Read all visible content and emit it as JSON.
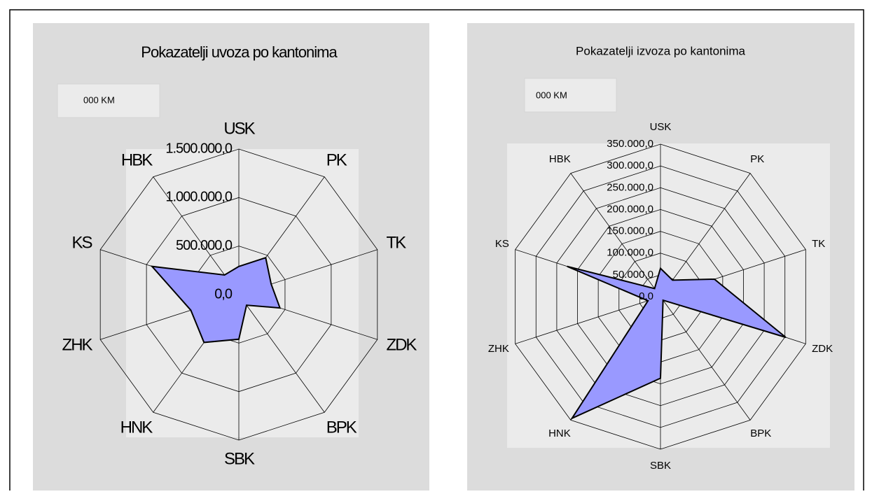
{
  "chart_data": [
    {
      "type": "radar",
      "title": "Pokazatelji uvoza po kantonima",
      "unit": "000 KM",
      "categories": [
        "USK",
        "PK",
        "TK",
        "ZDK",
        "BPK",
        "SBK",
        "HNK",
        "ZHK",
        "KS",
        "HBK"
      ],
      "values": [
        290000,
        470000,
        350000,
        445000,
        135000,
        460000,
        610000,
        520000,
        940000,
        250000
      ],
      "color": "#9999ff",
      "rlim": [
        0,
        1500000
      ],
      "rticks": [
        {
          "value": 0,
          "label": "0,0"
        },
        {
          "value": 500000,
          "label": "500.000,0"
        },
        {
          "value": 1000000,
          "label": "1.000.000,0"
        },
        {
          "value": 1500000,
          "label": "1.500.000,0"
        }
      ]
    },
    {
      "type": "radar",
      "title": "Pokazatelji izvoza po kantonima",
      "unit": "000 KM",
      "categories": [
        "USK",
        "PK",
        "TK",
        "ZDK",
        "BPK",
        "SBK",
        "HNK",
        "ZHK",
        "KS",
        "HBK"
      ],
      "values": [
        65000,
        47000,
        130000,
        302000,
        10000,
        187000,
        345000,
        30000,
        225000,
        23000
      ],
      "color": "#9999ff",
      "rlim": [
        0,
        350000
      ],
      "rticks": [
        {
          "value": 0,
          "label": "0,0"
        },
        {
          "value": 50000,
          "label": "50.000,0"
        },
        {
          "value": 100000,
          "label": "100.000,0"
        },
        {
          "value": 150000,
          "label": "150.000,0"
        },
        {
          "value": 200000,
          "label": "200.000,0"
        },
        {
          "value": 250000,
          "label": "250.000,0"
        },
        {
          "value": 300000,
          "label": "300.000,0"
        },
        {
          "value": 350000,
          "label": "350.000,0"
        }
      ]
    }
  ]
}
